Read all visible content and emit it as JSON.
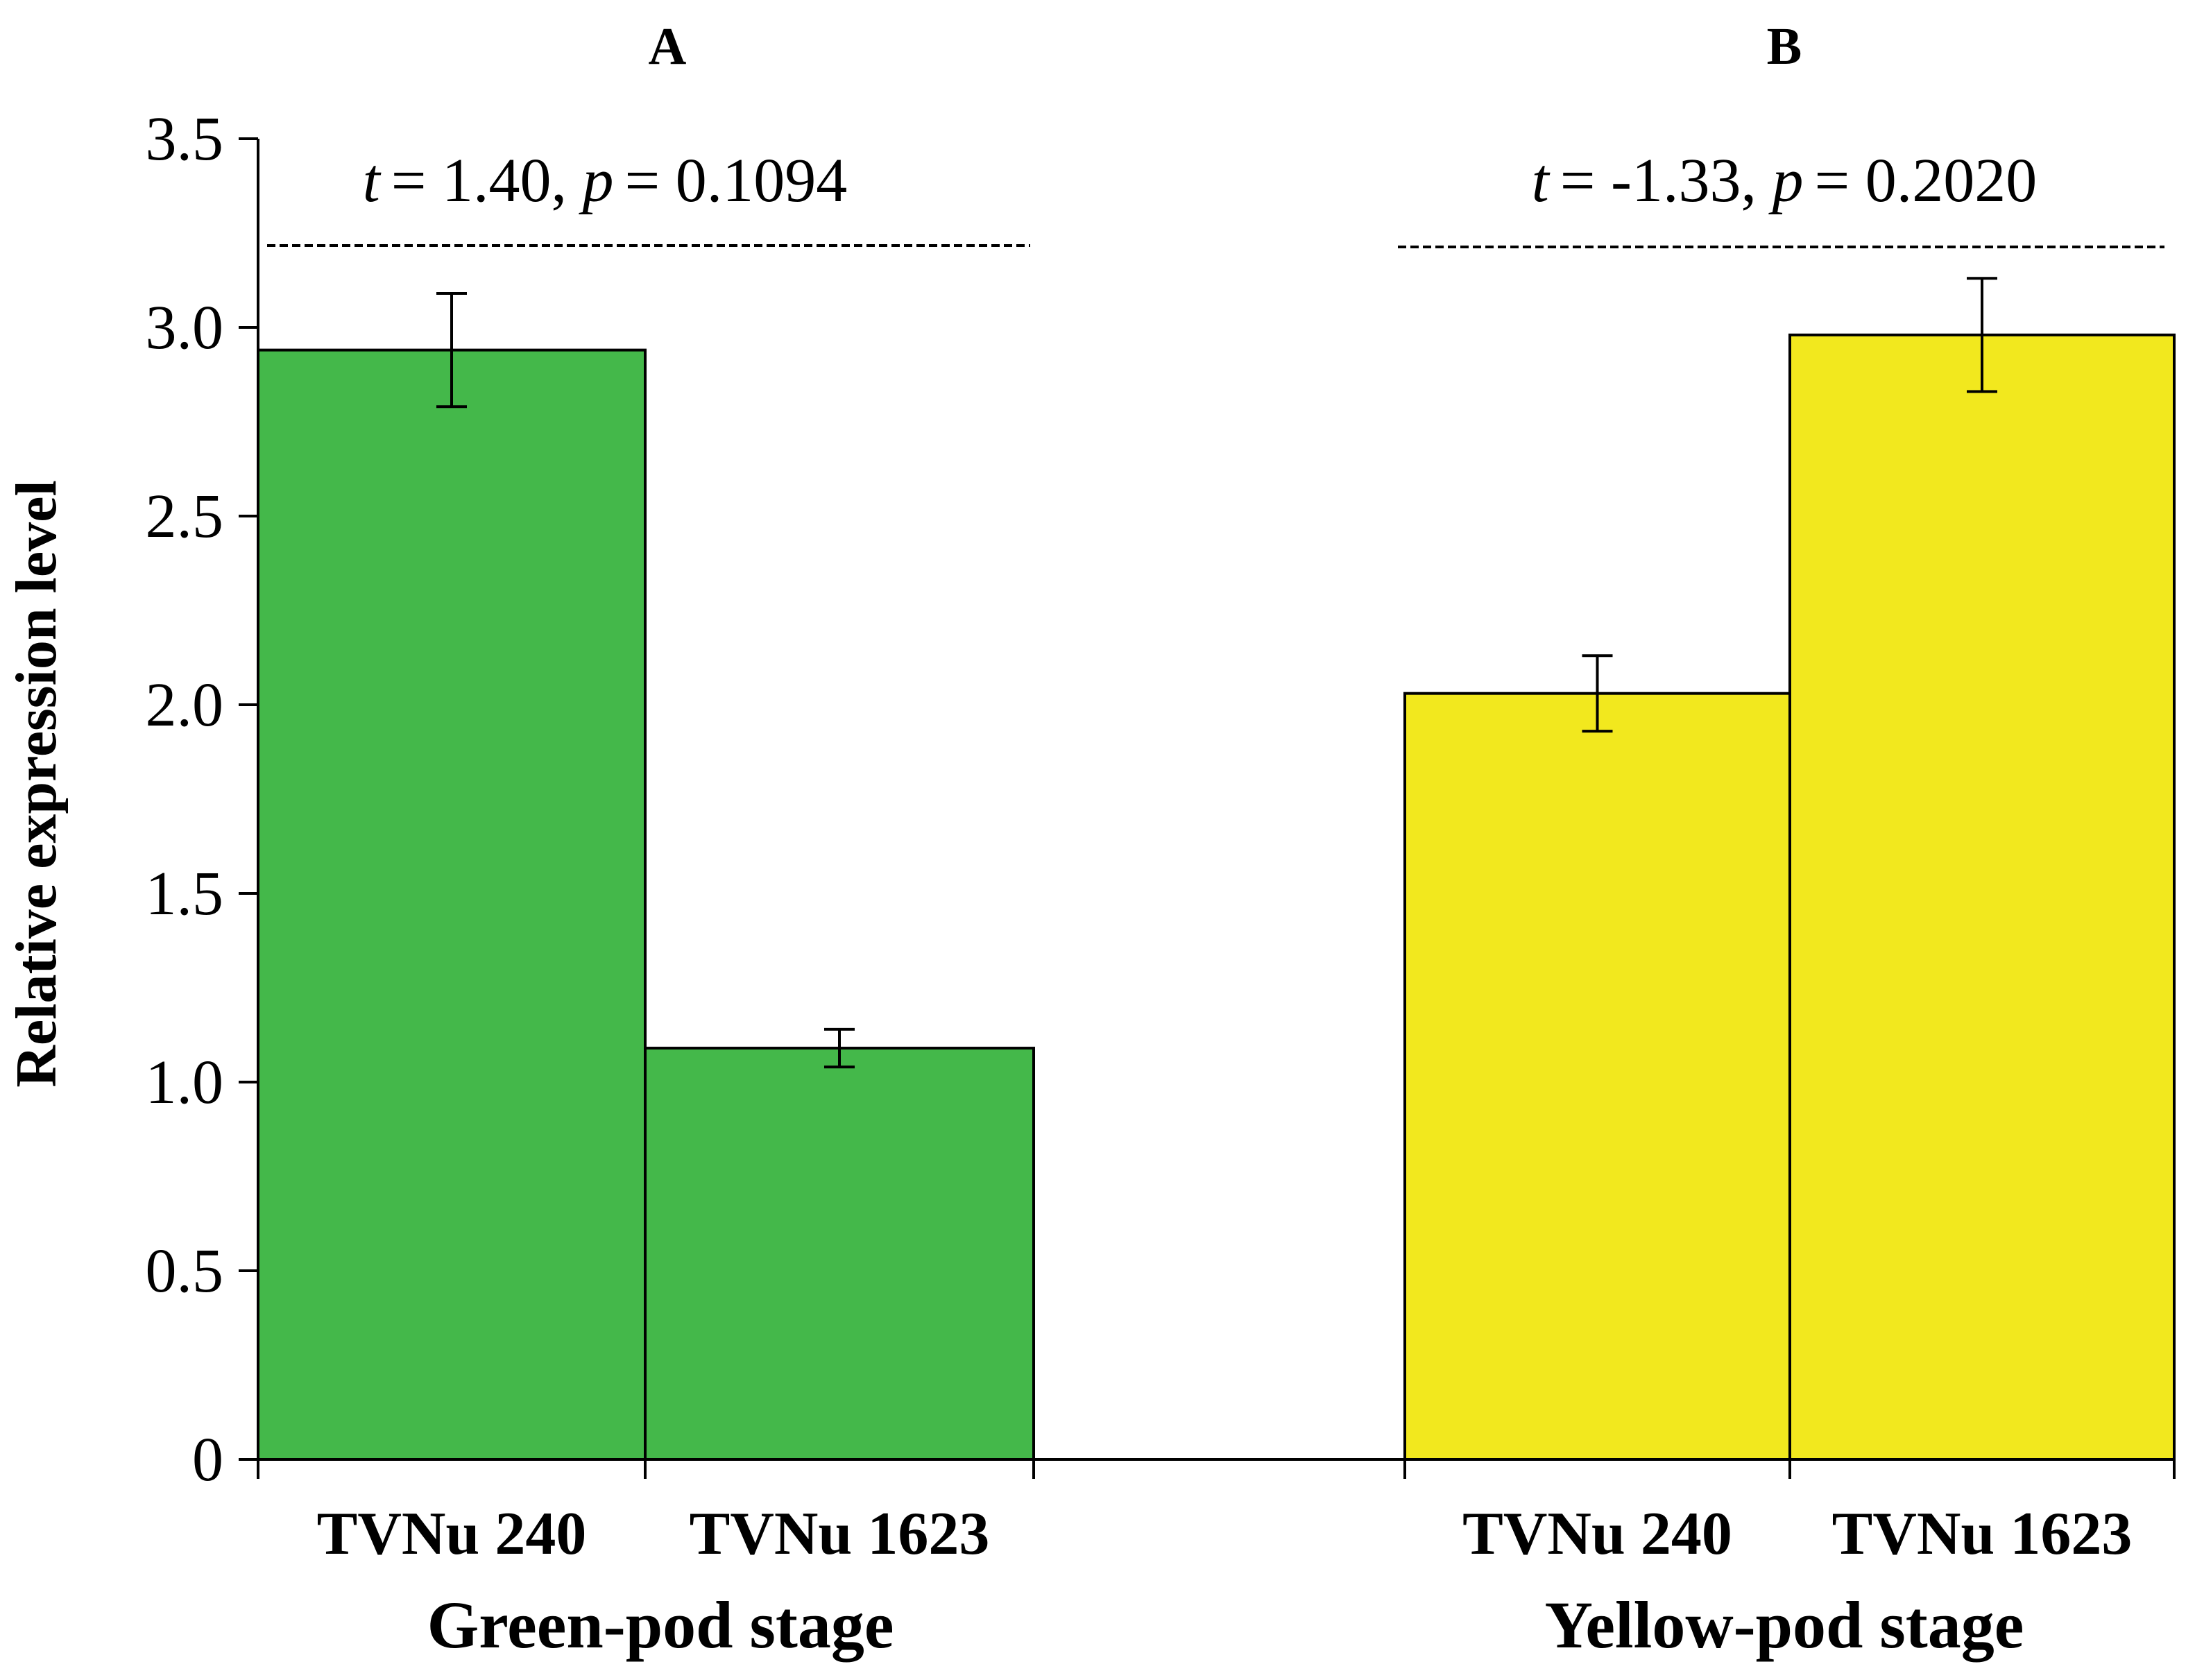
{
  "chart_data": {
    "type": "bar",
    "ylabel": "Relative expression level",
    "ylim": [
      0,
      3.5
    ],
    "yticks": [
      0,
      0.5,
      1.0,
      1.5,
      2.0,
      2.5,
      3.0,
      3.5
    ],
    "ytick_labels": [
      "0",
      "0.5",
      "1.0",
      "1.5",
      "2.0",
      "2.5",
      "3.0",
      "3.5"
    ],
    "grid": false,
    "panels": [
      {
        "panel_label": "A",
        "stage": "Green-pod stage",
        "color": "#44b84a",
        "t_label": "t",
        "t_value": "= 1.40, ",
        "p_label": "p",
        "p_value": "= 0.1094",
        "categories": [
          "TVNu 240",
          "TVNu 1623"
        ],
        "values": [
          2.94,
          1.09
        ],
        "errors": [
          0.15,
          0.05
        ]
      },
      {
        "panel_label": "B",
        "stage": "Yellow-pod stage",
        "color": "#f2e81e",
        "t_label": "t",
        "t_value": "= -1.33, ",
        "p_label": "p",
        "p_value": "= 0.2020",
        "categories": [
          "TVNu 240",
          "TVNu 1623"
        ],
        "values": [
          2.03,
          2.98
        ],
        "errors": [
          0.1,
          0.15
        ]
      }
    ]
  }
}
